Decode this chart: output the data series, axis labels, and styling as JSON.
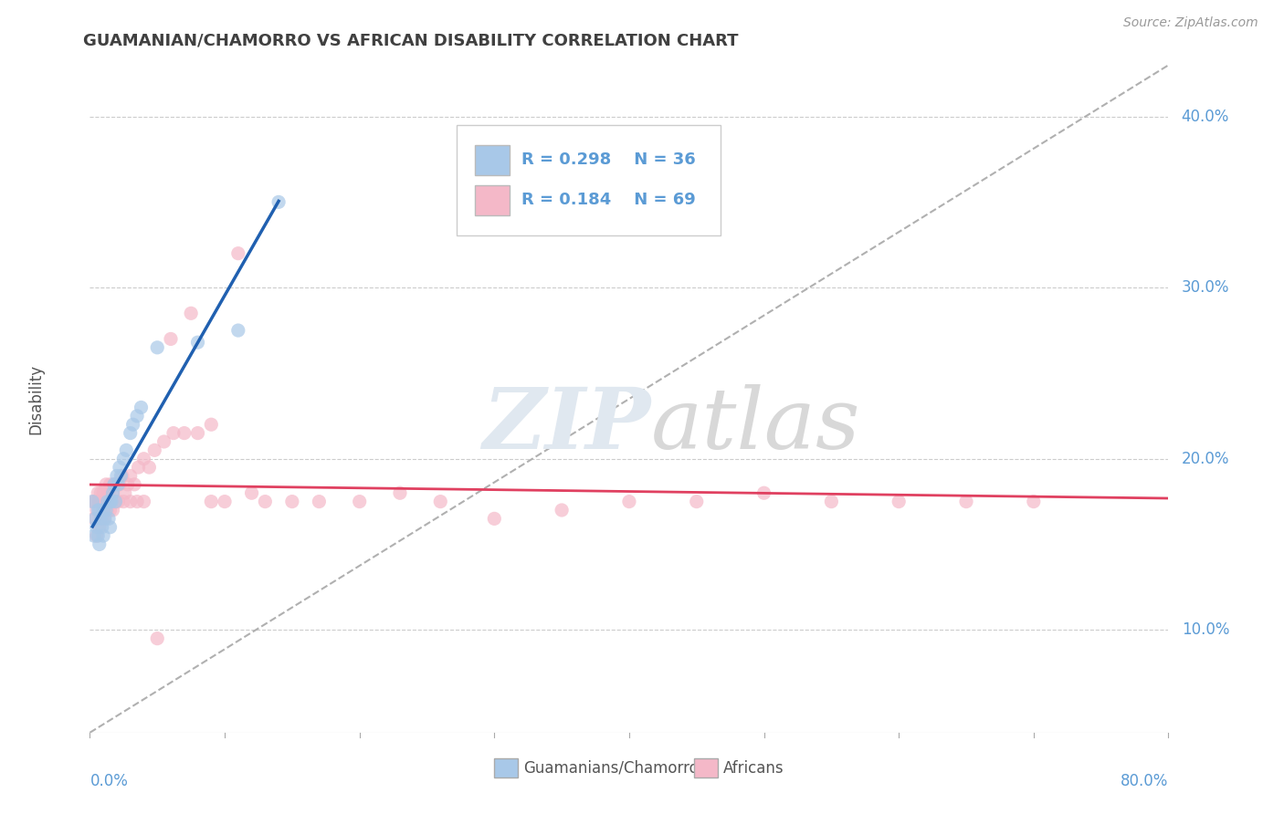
{
  "title": "GUAMANIAN/CHAMORRO VS AFRICAN DISABILITY CORRELATION CHART",
  "source": "Source: ZipAtlas.com",
  "ylabel": "Disability",
  "xlim": [
    0.0,
    0.8
  ],
  "ylim": [
    0.04,
    0.43
  ],
  "yticks": [
    0.1,
    0.2,
    0.3,
    0.4
  ],
  "ytick_labels": [
    "10.0%",
    "20.0%",
    "30.0%",
    "40.0%"
  ],
  "legend_r1": "0.298",
  "legend_n1": "36",
  "legend_r2": "0.184",
  "legend_n2": "69",
  "color_blue": "#a8c8e8",
  "color_pink": "#f4b8c8",
  "color_trend_blue": "#2060b0",
  "color_trend_pink": "#e04060",
  "color_dashed": "#b0b0b0",
  "background_color": "#ffffff",
  "title_color": "#404040",
  "axis_color": "#5b9bd5",
  "watermark_color": "#e0e8f0",
  "guamanian_x": [
    0.002,
    0.003,
    0.004,
    0.005,
    0.006,
    0.006,
    0.007,
    0.007,
    0.008,
    0.009,
    0.01,
    0.01,
    0.011,
    0.012,
    0.013,
    0.014,
    0.015,
    0.015,
    0.016,
    0.017,
    0.018,
    0.019,
    0.02,
    0.021,
    0.022,
    0.023,
    0.025,
    0.027,
    0.03,
    0.032,
    0.035,
    0.038,
    0.05,
    0.08,
    0.11,
    0.14
  ],
  "guamanian_y": [
    0.175,
    0.155,
    0.165,
    0.16,
    0.17,
    0.155,
    0.17,
    0.15,
    0.165,
    0.16,
    0.17,
    0.155,
    0.165,
    0.17,
    0.175,
    0.165,
    0.175,
    0.16,
    0.175,
    0.18,
    0.185,
    0.175,
    0.19,
    0.185,
    0.195,
    0.19,
    0.2,
    0.205,
    0.215,
    0.22,
    0.225,
    0.23,
    0.265,
    0.268,
    0.275,
    0.35
  ],
  "african_x": [
    0.002,
    0.003,
    0.004,
    0.005,
    0.006,
    0.007,
    0.008,
    0.009,
    0.01,
    0.011,
    0.012,
    0.013,
    0.014,
    0.015,
    0.016,
    0.017,
    0.018,
    0.019,
    0.02,
    0.022,
    0.024,
    0.026,
    0.028,
    0.03,
    0.033,
    0.036,
    0.04,
    0.044,
    0.048,
    0.055,
    0.062,
    0.07,
    0.08,
    0.09,
    0.1,
    0.11,
    0.13,
    0.15,
    0.17,
    0.2,
    0.23,
    0.26,
    0.3,
    0.35,
    0.4,
    0.45,
    0.5,
    0.55,
    0.6,
    0.65,
    0.7,
    0.005,
    0.007,
    0.009,
    0.011,
    0.013,
    0.015,
    0.017,
    0.019,
    0.021,
    0.025,
    0.03,
    0.035,
    0.04,
    0.05,
    0.06,
    0.075,
    0.09,
    0.12
  ],
  "african_y": [
    0.175,
    0.165,
    0.175,
    0.17,
    0.18,
    0.175,
    0.18,
    0.175,
    0.18,
    0.175,
    0.185,
    0.175,
    0.18,
    0.185,
    0.175,
    0.18,
    0.185,
    0.175,
    0.185,
    0.185,
    0.19,
    0.18,
    0.185,
    0.19,
    0.185,
    0.195,
    0.2,
    0.195,
    0.205,
    0.21,
    0.215,
    0.215,
    0.215,
    0.22,
    0.175,
    0.32,
    0.175,
    0.175,
    0.175,
    0.175,
    0.18,
    0.175,
    0.165,
    0.17,
    0.175,
    0.175,
    0.18,
    0.175,
    0.175,
    0.175,
    0.175,
    0.155,
    0.16,
    0.165,
    0.165,
    0.17,
    0.17,
    0.17,
    0.175,
    0.175,
    0.175,
    0.175,
    0.175,
    0.175,
    0.095,
    0.27,
    0.285,
    0.175,
    0.18
  ]
}
